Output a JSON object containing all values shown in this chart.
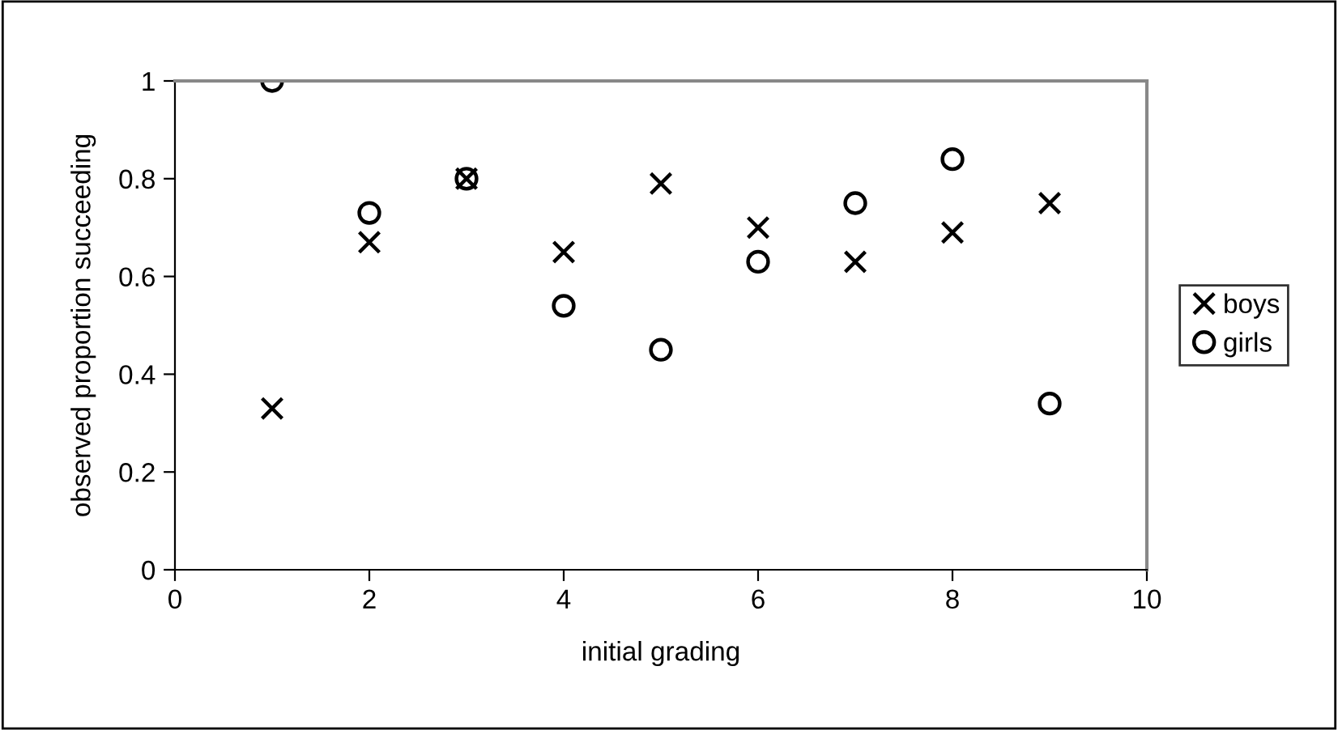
{
  "chart_data": {
    "type": "scatter",
    "xlabel": "initial grading",
    "ylabel": "observed proportion succeeding",
    "x": [
      1,
      2,
      3,
      4,
      5,
      6,
      7,
      8,
      9
    ],
    "series": [
      {
        "name": "boys",
        "color": "#000000",
        "marker": "cross",
        "values": [
          0.33,
          0.67,
          0.8,
          0.65,
          0.79,
          0.7,
          0.63,
          0.69,
          0.75
        ]
      },
      {
        "name": "girls",
        "color": "#000000",
        "marker": "circle",
        "values": [
          1.0,
          0.73,
          0.8,
          0.54,
          0.45,
          0.63,
          0.75,
          0.84,
          0.34
        ]
      }
    ],
    "xlim": [
      0,
      10
    ],
    "xticks": [
      0,
      2,
      4,
      6,
      8,
      10
    ],
    "ylim": [
      0,
      1
    ],
    "yticks": [
      0,
      0.2,
      0.4,
      0.6,
      0.8,
      1
    ],
    "grid": false,
    "legend": "right"
  }
}
